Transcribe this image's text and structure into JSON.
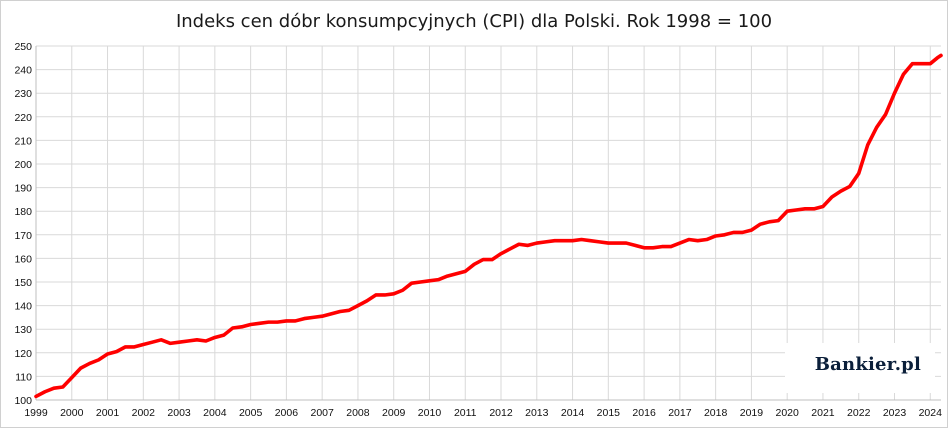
{
  "chart_data": {
    "type": "line",
    "title": "Indeks cen dóbr konsumpcyjnych (CPI) dla Polski. Rok 1998 = 100",
    "xlabel": "",
    "ylabel": "",
    "ylim": [
      100,
      250
    ],
    "yticks": [
      100,
      110,
      120,
      130,
      140,
      150,
      160,
      170,
      180,
      190,
      200,
      210,
      220,
      230,
      240,
      250
    ],
    "xlim": [
      1999,
      2024.3
    ],
    "xticks": [
      "1999",
      "2000",
      "2001",
      "2002",
      "2003",
      "2004",
      "2005",
      "2006",
      "2007",
      "2008",
      "2009",
      "2010",
      "2011",
      "2012",
      "2013",
      "2014",
      "2015",
      "2016",
      "2017",
      "2018",
      "2019",
      "2020",
      "2021",
      "2022",
      "2023",
      "2024"
    ],
    "grid": true,
    "legend": "none",
    "series": [
      {
        "color": "#ff0000",
        "points": [
          [
            1999.0,
            101.5
          ],
          [
            1999.25,
            103.5
          ],
          [
            1999.5,
            105.0
          ],
          [
            1999.75,
            105.5
          ],
          [
            2000.0,
            109.5
          ],
          [
            2000.25,
            113.5
          ],
          [
            2000.5,
            115.5
          ],
          [
            2000.75,
            117.0
          ],
          [
            2001.0,
            119.5
          ],
          [
            2001.25,
            120.5
          ],
          [
            2001.5,
            122.5
          ],
          [
            2001.75,
            122.5
          ],
          [
            2002.0,
            123.5
          ],
          [
            2002.25,
            124.5
          ],
          [
            2002.5,
            125.5
          ],
          [
            2002.75,
            124.0
          ],
          [
            2003.0,
            124.5
          ],
          [
            2003.25,
            125.0
          ],
          [
            2003.5,
            125.5
          ],
          [
            2003.75,
            125.0
          ],
          [
            2004.0,
            126.5
          ],
          [
            2004.25,
            127.5
          ],
          [
            2004.5,
            130.5
          ],
          [
            2004.75,
            131.0
          ],
          [
            2005.0,
            132.0
          ],
          [
            2005.25,
            132.5
          ],
          [
            2005.5,
            133.0
          ],
          [
            2005.75,
            133.0
          ],
          [
            2006.0,
            133.5
          ],
          [
            2006.25,
            133.5
          ],
          [
            2006.5,
            134.5
          ],
          [
            2006.75,
            135.0
          ],
          [
            2007.0,
            135.5
          ],
          [
            2007.25,
            136.5
          ],
          [
            2007.5,
            137.5
          ],
          [
            2007.75,
            138.0
          ],
          [
            2008.0,
            140.0
          ],
          [
            2008.25,
            142.0
          ],
          [
            2008.5,
            144.5
          ],
          [
            2008.75,
            144.5
          ],
          [
            2009.0,
            145.0
          ],
          [
            2009.25,
            146.5
          ],
          [
            2009.5,
            149.5
          ],
          [
            2009.75,
            150.0
          ],
          [
            2010.0,
            150.5
          ],
          [
            2010.25,
            151.0
          ],
          [
            2010.5,
            152.5
          ],
          [
            2010.75,
            153.5
          ],
          [
            2011.0,
            154.5
          ],
          [
            2011.25,
            157.5
          ],
          [
            2011.5,
            159.5
          ],
          [
            2011.75,
            159.5
          ],
          [
            2012.0,
            162.0
          ],
          [
            2012.25,
            164.0
          ],
          [
            2012.5,
            166.0
          ],
          [
            2012.75,
            165.5
          ],
          [
            2013.0,
            166.5
          ],
          [
            2013.25,
            167.0
          ],
          [
            2013.5,
            167.5
          ],
          [
            2013.75,
            167.5
          ],
          [
            2014.0,
            167.5
          ],
          [
            2014.25,
            168.0
          ],
          [
            2014.5,
            167.5
          ],
          [
            2014.75,
            167.0
          ],
          [
            2015.0,
            166.5
          ],
          [
            2015.25,
            166.5
          ],
          [
            2015.5,
            166.5
          ],
          [
            2015.75,
            165.5
          ],
          [
            2016.0,
            164.5
          ],
          [
            2016.25,
            164.5
          ],
          [
            2016.5,
            165.0
          ],
          [
            2016.75,
            165.0
          ],
          [
            2017.0,
            166.5
          ],
          [
            2017.25,
            168.0
          ],
          [
            2017.5,
            167.5
          ],
          [
            2017.75,
            168.0
          ],
          [
            2018.0,
            169.5
          ],
          [
            2018.25,
            170.0
          ],
          [
            2018.5,
            171.0
          ],
          [
            2018.75,
            171.0
          ],
          [
            2019.0,
            172.0
          ],
          [
            2019.25,
            174.5
          ],
          [
            2019.5,
            175.5
          ],
          [
            2019.75,
            176.0
          ],
          [
            2020.0,
            180.0
          ],
          [
            2020.25,
            180.5
          ],
          [
            2020.5,
            181.0
          ],
          [
            2020.75,
            181.0
          ],
          [
            2021.0,
            182.0
          ],
          [
            2021.25,
            186.0
          ],
          [
            2021.5,
            188.5
          ],
          [
            2021.75,
            190.5
          ],
          [
            2022.0,
            196.0
          ],
          [
            2022.25,
            208.0
          ],
          [
            2022.5,
            215.5
          ],
          [
            2022.75,
            221.0
          ],
          [
            2023.0,
            230.0
          ],
          [
            2023.25,
            238.0
          ],
          [
            2023.5,
            242.5
          ],
          [
            2023.75,
            242.5
          ],
          [
            2024.0,
            242.5
          ],
          [
            2024.2,
            245.0
          ],
          [
            2024.3,
            246.0
          ]
        ]
      }
    ]
  },
  "branding": {
    "logo_text": "Bankier.pl"
  }
}
